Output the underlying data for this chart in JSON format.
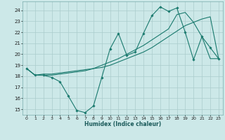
{
  "title": "",
  "xlabel": "Humidex (Indice chaleur)",
  "bg_color": "#cce8e8",
  "grid_color": "#aacccc",
  "line_color": "#1a7a6e",
  "xlim": [
    -0.5,
    23.5
  ],
  "ylim": [
    14.5,
    24.8
  ],
  "xticks": [
    0,
    1,
    2,
    3,
    4,
    5,
    6,
    7,
    8,
    9,
    10,
    11,
    12,
    13,
    14,
    15,
    16,
    17,
    18,
    19,
    20,
    21,
    22,
    23
  ],
  "yticks": [
    15,
    16,
    17,
    18,
    19,
    20,
    21,
    22,
    23,
    24
  ],
  "series1_x": [
    0,
    1,
    2,
    3,
    4,
    5,
    6,
    7,
    8,
    9,
    10,
    11,
    12,
    13,
    14,
    15,
    16,
    17,
    18,
    19,
    20,
    21,
    22,
    23
  ],
  "series1_y": [
    18.7,
    18.1,
    18.1,
    17.9,
    17.5,
    16.2,
    14.9,
    14.7,
    15.3,
    17.9,
    20.5,
    21.9,
    19.9,
    20.2,
    21.9,
    23.5,
    24.3,
    23.9,
    24.2,
    22.0,
    19.5,
    21.6,
    20.6,
    19.6
  ],
  "series2_x": [
    0,
    1,
    2,
    3,
    4,
    5,
    6,
    7,
    8,
    9,
    10,
    11,
    12,
    13,
    14,
    15,
    16,
    17,
    18,
    19,
    20,
    21,
    22,
    23
  ],
  "series2_y": [
    18.7,
    18.1,
    18.2,
    18.2,
    18.3,
    18.4,
    18.5,
    18.6,
    18.7,
    18.8,
    19.0,
    19.3,
    19.6,
    19.9,
    20.2,
    20.6,
    21.1,
    21.6,
    22.1,
    22.6,
    22.9,
    23.2,
    23.4,
    19.6
  ],
  "series3_x": [
    0,
    1,
    2,
    3,
    4,
    5,
    6,
    7,
    8,
    9,
    10,
    11,
    12,
    13,
    14,
    15,
    16,
    17,
    18,
    19,
    20,
    21,
    22,
    23
  ],
  "series3_y": [
    18.7,
    18.1,
    18.1,
    18.1,
    18.2,
    18.3,
    18.4,
    18.5,
    18.7,
    19.0,
    19.3,
    19.6,
    20.0,
    20.4,
    20.8,
    21.3,
    21.8,
    22.3,
    23.6,
    23.8,
    22.9,
    21.6,
    19.6,
    19.6
  ]
}
